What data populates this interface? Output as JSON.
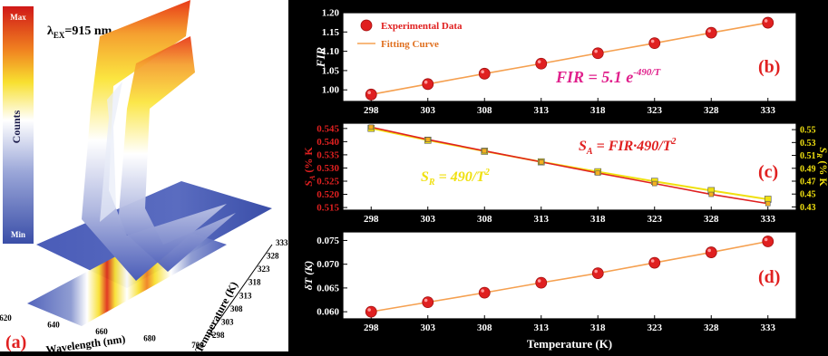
{
  "panel_a": {
    "label": "(a)",
    "excitation_text": "λ",
    "excitation_sub": "EX",
    "excitation_value": "=915 nm",
    "colorbar": {
      "max_label": "Max",
      "title": "Counts",
      "min_label": "Min"
    },
    "wavelength_axis": {
      "label": "Wavelength (nm)",
      "ticks": [
        "620",
        "640",
        "660",
        "680",
        "700"
      ]
    },
    "temperature_axis": {
      "label": "Temperature (K)",
      "ticks": [
        "298",
        "303",
        "308",
        "313",
        "318",
        "323",
        "328",
        "333"
      ]
    }
  },
  "chart_data": [
    {
      "panel": "(b)",
      "type": "scatter",
      "x": [
        298,
        303,
        308,
        313,
        318,
        323,
        328,
        333
      ],
      "series": [
        {
          "name": "Experimental Data",
          "values": [
            0.988,
            1.015,
            1.042,
            1.068,
            1.095,
            1.121,
            1.148,
            1.174
          ]
        },
        {
          "name": "Fitting Curve",
          "values": [
            0.988,
            1.015,
            1.042,
            1.068,
            1.095,
            1.121,
            1.148,
            1.174
          ]
        }
      ],
      "ylabel": "FIR",
      "ylim": [
        0.97,
        1.2
      ],
      "yticks": [
        "1.00",
        "1.05",
        "1.10",
        "1.15",
        "1.20"
      ],
      "annotation": "FIR = 5.1 e",
      "annotation_sup": "-490/T",
      "legend_position": "top-left",
      "colors": {
        "marker": "#e02020",
        "line": "#f5a050",
        "annotation": "#e0208c"
      }
    },
    {
      "panel": "(c)",
      "type": "line",
      "x": [
        298,
        303,
        308,
        313,
        318,
        323,
        328,
        333
      ],
      "series": [
        {
          "name": "S_A",
          "values": [
            0.5455,
            0.5408,
            0.5365,
            0.5323,
            0.5281,
            0.5241,
            0.52,
            0.5165
          ]
        },
        {
          "name": "S_R",
          "values": [
            0.552,
            0.5336,
            0.5165,
            0.5,
            0.4846,
            0.4697,
            0.4554,
            0.4419
          ]
        }
      ],
      "ylabel_left": "S",
      "ylabel_left_sub": "A",
      "ylabel_left_rest": " (% K",
      "ylabel_right": "S",
      "ylabel_right_sub": "R",
      "ylabel_right_rest": " (% K",
      "ylim_left": [
        0.514,
        0.547
      ],
      "ylim_right": [
        0.425,
        0.56
      ],
      "yticks_left": [
        "0.515",
        "0.520",
        "0.525",
        "0.530",
        "0.535",
        "0.540",
        "0.545"
      ],
      "yticks_right": [
        "0.43",
        "0.45",
        "0.47",
        "0.49",
        "0.51",
        "0.53",
        "0.55"
      ],
      "annotation_a": "S",
      "annotation_a_sub": "A",
      "annotation_a_rest": " = FIR·490/T",
      "annotation_r": "S",
      "annotation_r_sub": "R",
      "annotation_r_rest": " = 490/T",
      "colors": {
        "sa": "#e02020",
        "sr": "#f0e010"
      }
    },
    {
      "panel": "(d)",
      "type": "scatter",
      "x": [
        298,
        303,
        308,
        313,
        318,
        323,
        328,
        333
      ],
      "series": [
        {
          "name": "δT",
          "values": [
            0.06,
            0.062,
            0.064,
            0.0661,
            0.0681,
            0.0703,
            0.0725,
            0.0748
          ]
        }
      ],
      "ylabel": "δT (K)",
      "ylim": [
        0.0585,
        0.0768
      ],
      "yticks": [
        "0.060",
        "0.065",
        "0.070",
        "0.075"
      ],
      "xlabel": "Temperature (K)",
      "xticks": [
        "298",
        "303",
        "308",
        "313",
        "318",
        "323",
        "328",
        "333"
      ],
      "colors": {
        "marker": "#e02020",
        "line": "#f5a050"
      }
    }
  ]
}
